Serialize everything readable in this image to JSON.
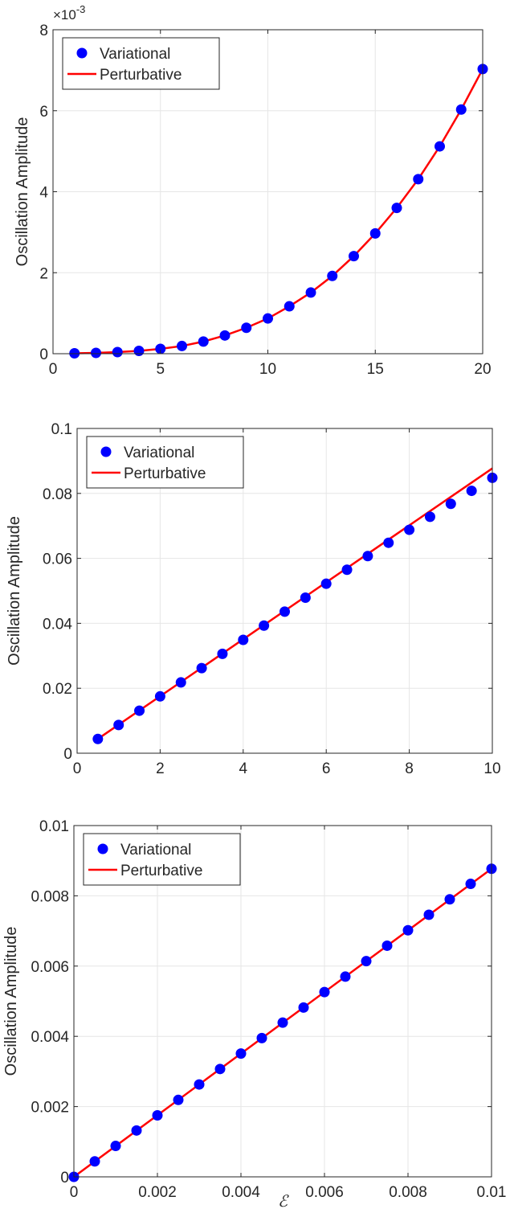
{
  "colors": {
    "variational": "#0000ff",
    "perturbative": "#ff0000",
    "grid": "#e6e6e6",
    "axis": "#262626"
  },
  "chart_data": [
    {
      "type": "line",
      "ylabel": "Oscillation Amplitude",
      "xlabel": "",
      "exponent_label": "×10",
      "exponent_power": "-3",
      "xlim": [
        0,
        20
      ],
      "ylim": [
        0,
        8
      ],
      "y_scale": 0.001,
      "grid": true,
      "legend_position": "top-left",
      "xticks": [
        0,
        5,
        10,
        15,
        20
      ],
      "xtick_labels": [
        "0",
        "5",
        "10",
        "15",
        "20"
      ],
      "yticks": [
        0,
        2,
        4,
        6,
        8
      ],
      "ytick_labels": [
        "0",
        "2",
        "4",
        "6",
        "8"
      ],
      "series": [
        {
          "name": "Variational",
          "style": "markers",
          "x": [
            1,
            2,
            3,
            4,
            5,
            6,
            7,
            8,
            9,
            10,
            11,
            12,
            13,
            14,
            15,
            16,
            17,
            18,
            19,
            20
          ],
          "y": [
            1e-05,
            2e-05,
            4e-05,
            7e-05,
            0.00012,
            0.00019,
            0.0003,
            0.00045,
            0.00064,
            0.00087,
            0.00117,
            0.00151,
            0.00192,
            0.00241,
            0.00297,
            0.0036,
            0.00431,
            0.00512,
            0.00603,
            0.00703
          ]
        },
        {
          "name": "Perturbative",
          "style": "line",
          "x": [
            1,
            2,
            3,
            4,
            5,
            6,
            7,
            8,
            9,
            10,
            11,
            12,
            13,
            14,
            15,
            16,
            17,
            18,
            19,
            20
          ],
          "y": [
            1e-05,
            2e-05,
            4e-05,
            7e-05,
            0.00012,
            0.00019,
            0.0003,
            0.00045,
            0.00064,
            0.00087,
            0.00117,
            0.00151,
            0.00192,
            0.00241,
            0.00297,
            0.0036,
            0.00431,
            0.00512,
            0.00603,
            0.00703
          ]
        }
      ]
    },
    {
      "type": "line",
      "ylabel": "Oscillation Amplitude",
      "xlabel": "",
      "xlim": [
        0,
        10
      ],
      "ylim": [
        0,
        0.1
      ],
      "y_scale": 1,
      "grid": true,
      "legend_position": "top-left",
      "xticks": [
        0,
        2,
        4,
        6,
        8,
        10
      ],
      "xtick_labels": [
        "0",
        "2",
        "4",
        "6",
        "8",
        "10"
      ],
      "yticks": [
        0,
        0.02,
        0.04,
        0.06,
        0.08,
        0.1
      ],
      "ytick_labels": [
        "0",
        "0.02",
        "0.04",
        "0.06",
        "0.08",
        "0.1"
      ],
      "series": [
        {
          "name": "Variational",
          "style": "markers",
          "x": [
            0.5,
            1,
            1.5,
            2,
            2.5,
            3,
            3.5,
            4,
            4.5,
            5,
            5.5,
            6,
            6.5,
            7,
            7.5,
            8,
            8.5,
            9,
            9.5,
            10
          ],
          "y": [
            0.0044,
            0.0087,
            0.0131,
            0.0175,
            0.0218,
            0.0262,
            0.0306,
            0.0349,
            0.0393,
            0.0436,
            0.0479,
            0.0522,
            0.0565,
            0.0607,
            0.0648,
            0.0688,
            0.0728,
            0.0768,
            0.0808,
            0.0848
          ]
        },
        {
          "name": "Perturbative",
          "style": "line",
          "x": [
            0.5,
            10
          ],
          "y": [
            0.0044,
            0.0877
          ]
        }
      ]
    },
    {
      "type": "line",
      "ylabel": "Oscillation Amplitude",
      "xlabel": "ℰ",
      "xlim": [
        0,
        0.01
      ],
      "ylim": [
        0,
        0.01
      ],
      "y_scale": 1,
      "grid": true,
      "legend_position": "top-left",
      "xticks": [
        0,
        0.002,
        0.004,
        0.006,
        0.008,
        0.01
      ],
      "xtick_labels": [
        "0",
        "0.002",
        "0.004",
        "0.006",
        "0.008",
        "0.01"
      ],
      "yticks": [
        0,
        0.002,
        0.004,
        0.006,
        0.008,
        0.01
      ],
      "ytick_labels": [
        "0",
        "0.002",
        "0.004",
        "0.006",
        "0.008",
        "0.01"
      ],
      "series": [
        {
          "name": "Variational",
          "style": "markers",
          "x": [
            0,
            0.0005,
            0.001,
            0.0015,
            0.002,
            0.0025,
            0.003,
            0.0035,
            0.004,
            0.0045,
            0.005,
            0.0055,
            0.006,
            0.0065,
            0.007,
            0.0075,
            0.008,
            0.0085,
            0.009,
            0.0095,
            0.01
          ],
          "y": [
            0,
            0.00044,
            0.00088,
            0.00132,
            0.00175,
            0.00219,
            0.00263,
            0.00307,
            0.00351,
            0.00395,
            0.00439,
            0.00482,
            0.00526,
            0.0057,
            0.00614,
            0.00658,
            0.00702,
            0.00746,
            0.0079,
            0.00834,
            0.00877
          ]
        },
        {
          "name": "Perturbative",
          "style": "line",
          "x": [
            0,
            0.01
          ],
          "y": [
            0,
            0.00877
          ]
        }
      ]
    }
  ]
}
